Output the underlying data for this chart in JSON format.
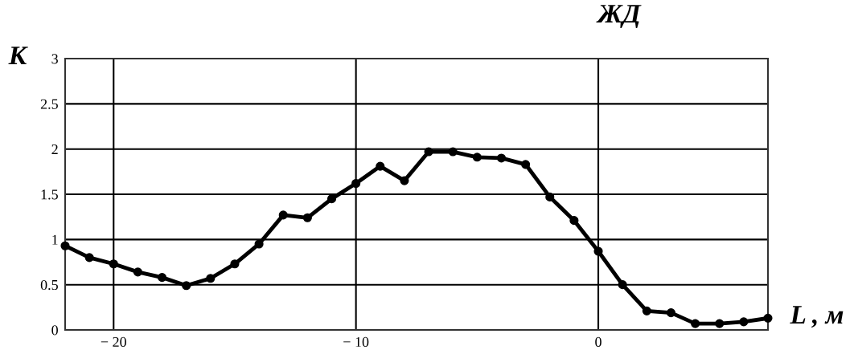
{
  "chart_data": {
    "type": "line",
    "title": "ЖД",
    "xlabel": "L , м",
    "ylabel": "К",
    "x": [
      -22,
      -21,
      -20,
      -19,
      -18,
      -17,
      -16,
      -15,
      -14,
      -13,
      -12,
      -11,
      -10,
      -9,
      -8,
      -7,
      -6,
      -5,
      -4,
      -3,
      -2,
      -1,
      0,
      1,
      2,
      3,
      4,
      5,
      6,
      7
    ],
    "series": [
      {
        "color": "#000000",
        "values": [
          0.93,
          0.8,
          0.73,
          0.64,
          0.58,
          0.49,
          0.57,
          0.73,
          0.95,
          1.27,
          1.24,
          1.45,
          1.62,
          1.81,
          1.65,
          1.97,
          1.97,
          1.91,
          1.9,
          1.83,
          1.47,
          1.21,
          0.87,
          0.5,
          0.21,
          0.19,
          0.07,
          0.07,
          0.09,
          0.13
        ]
      }
    ],
    "xlim": [
      -22,
      7
    ],
    "xticks": [
      {
        "value": -20,
        "label": "− 20"
      },
      {
        "value": -10,
        "label": "− 10"
      },
      0
    ],
    "ylim": [
      0,
      3
    ],
    "yticks": [
      0,
      0.5,
      1,
      1.5,
      2,
      2.5,
      3
    ],
    "grid": true,
    "marker": "circle",
    "line_style": "solid"
  }
}
